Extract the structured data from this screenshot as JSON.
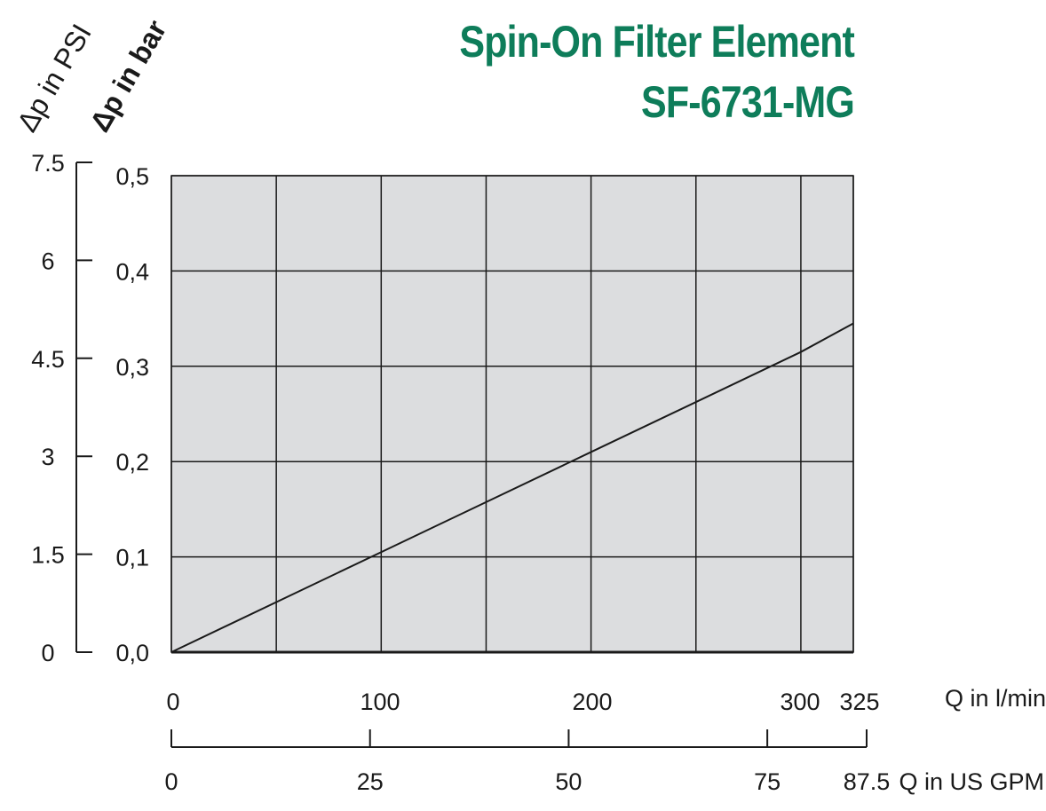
{
  "header": {
    "title_line1": "Spin-On Filter Element",
    "title_line2": "SF-6731-MG"
  },
  "axes": {
    "left_outer_label": "Δp in PSI",
    "left_inner_label": "Δp in bar",
    "bottom_top_label": "Q in l/min",
    "bottom_bottom_label": "Q in US GPM"
  },
  "chart_data": {
    "type": "line",
    "title": "Spin-On Filter Element SF-6731-MG",
    "xlabel": "Q in l/min",
    "xlabel_secondary": "Q in US GPM",
    "ylabel": "Δp in bar",
    "ylabel_secondary": "Δp in PSI",
    "xlim": [
      0,
      325
    ],
    "ylim": [
      0,
      0.5
    ],
    "x_ticks": [
      {
        "value": 0,
        "label": "0"
      },
      {
        "value": 100,
        "label": "100"
      },
      {
        "value": 200,
        "label": "200"
      },
      {
        "value": 300,
        "label": "300"
      },
      {
        "value": 325,
        "label": "325"
      }
    ],
    "x_gridlines": [
      0,
      50,
      100,
      150,
      200,
      250,
      300,
      325
    ],
    "x2_ticks": [
      {
        "value": 0,
        "label": "0"
      },
      {
        "value": 25,
        "label": "25"
      },
      {
        "value": 50,
        "label": "50"
      },
      {
        "value": 75,
        "label": "75"
      },
      {
        "value": 87.5,
        "label": "87.5"
      }
    ],
    "y_ticks": [
      {
        "value": 0.0,
        "label": "0,0"
      },
      {
        "value": 0.1,
        "label": "0,1"
      },
      {
        "value": 0.2,
        "label": "0,2"
      },
      {
        "value": 0.3,
        "label": "0,3"
      },
      {
        "value": 0.4,
        "label": "0,4"
      },
      {
        "value": 0.5,
        "label": "0,5"
      }
    ],
    "y2_ticks": [
      {
        "value": 0,
        "label": "0"
      },
      {
        "value": 1.5,
        "label": "1.5"
      },
      {
        "value": 3,
        "label": "3"
      },
      {
        "value": 4.5,
        "label": "4.5"
      },
      {
        "value": 6,
        "label": "6"
      },
      {
        "value": 7.5,
        "label": "7.5"
      }
    ],
    "y2lim": [
      0,
      7.5
    ],
    "grid": true,
    "series": [
      {
        "x": [
          0,
          100,
          200,
          300,
          325
        ],
        "y": [
          0.0,
          0.105,
          0.21,
          0.315,
          0.345
        ]
      }
    ],
    "colors": {
      "plot_background": "#dcdddf",
      "grid": "#1a1a1a",
      "line": "#1a1a1a",
      "title": "#0e7d5a"
    }
  }
}
